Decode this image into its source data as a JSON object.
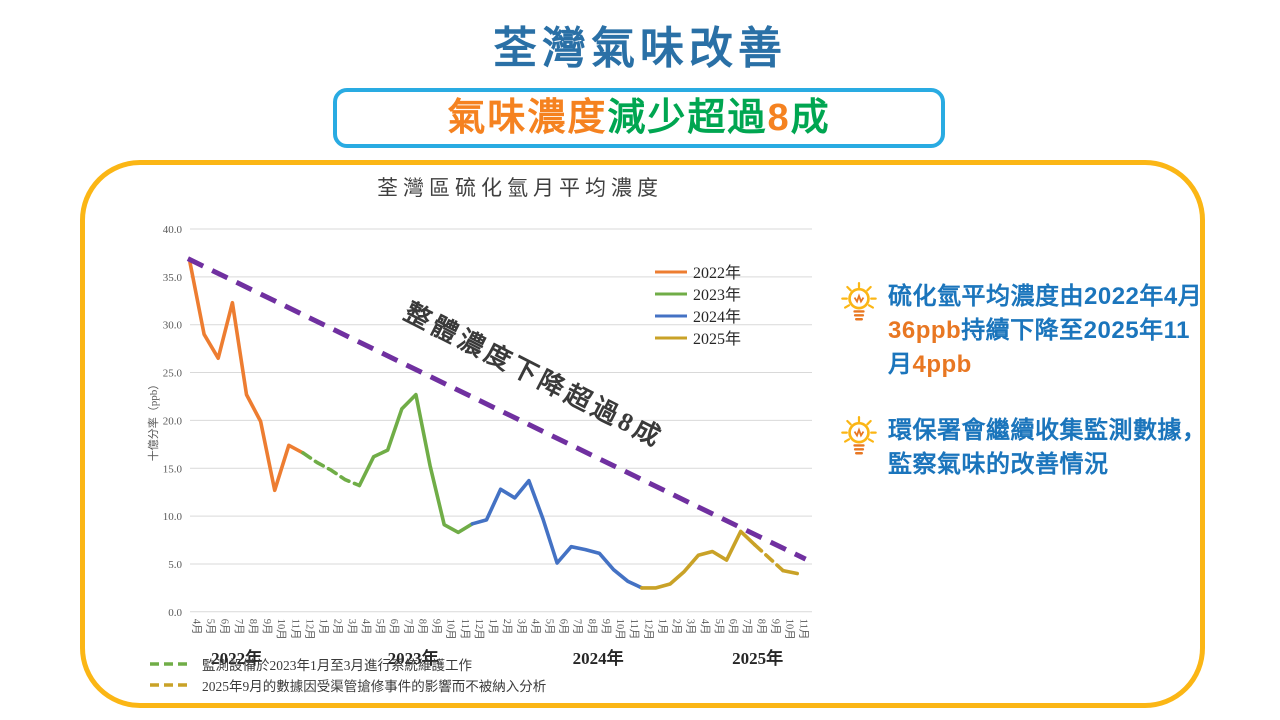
{
  "page": {
    "title": "荃灣氣味改善"
  },
  "subtitle": {
    "segments": [
      {
        "text": "氣味濃度",
        "color": "#F58220"
      },
      {
        "text": "減少超過",
        "color": "#00A651"
      },
      {
        "text": "8",
        "color": "#F58220"
      },
      {
        "text": "成",
        "color": "#00A651"
      }
    ]
  },
  "insights": {
    "bullet1_segments": [
      {
        "text": "硫化氫平均濃度由2022年4月",
        "color": "#1B75BC"
      },
      {
        "text": "36ppb",
        "color": "#E87722"
      },
      {
        "text": "持續下降至2025年11月",
        "color": "#1B75BC"
      },
      {
        "text": "4ppb",
        "color": "#E87722"
      }
    ],
    "bullet2_segments": [
      {
        "text": "環保署會繼續收集監測數據，監察氣味的改善情況",
        "color": "#1B75BC"
      }
    ]
  },
  "footnotes": [
    {
      "dash_color": "#70AD47",
      "text": "監測設備於2023年1月至3月進行系統維護工作"
    },
    {
      "dash_color": "#C9A227",
      "text": "2025年9月的數據因受渠管搶修事件的影響而不被納入分析"
    }
  ],
  "colors": {
    "title_blue": "#2A70A6",
    "text_blue": "#1B75BC",
    "accent_orange": "#F58220",
    "accent_green": "#00A651",
    "badge_border_cyan": "#29ABE2",
    "card_border_yellow": "#FBB615",
    "trend_purple": "#7030A0",
    "gridline": "#D9D9D9",
    "axis_text": "#595959"
  },
  "chart_data": {
    "type": "line",
    "title": "荃灣區硫化氫月平均濃度",
    "ylabel": "十億分率（ppb）",
    "ylim": [
      0,
      40
    ],
    "ytick_step": 5,
    "grid": true,
    "legend_position": "upper-right-inside",
    "x_labels": [
      "4月",
      "5月",
      "6月",
      "7月",
      "8月",
      "9月",
      "10月",
      "11月",
      "12月",
      "1月",
      "2月",
      "3月",
      "4月",
      "5月",
      "6月",
      "7月",
      "8月",
      "9月",
      "10月",
      "11月",
      "12月",
      "1月",
      "2月",
      "3月",
      "4月",
      "5月",
      "6月",
      "7月",
      "8月",
      "9月",
      "10月",
      "11月",
      "12月",
      "1月",
      "2月",
      "3月",
      "4月",
      "5月",
      "6月",
      "7月",
      "8月",
      "9月",
      "10月",
      "11月"
    ],
    "year_labels": [
      {
        "label": "2022年",
        "at": 3.3
      },
      {
        "label": "2023年",
        "at": 15.8
      },
      {
        "label": "2024年",
        "at": 28.9
      },
      {
        "label": "2025年",
        "at": 40.2
      }
    ],
    "series": [
      {
        "name": "2022年",
        "color": "#ED7D31",
        "segments": [
          {
            "style": "solid",
            "points": [
              [
                0,
                36.5
              ],
              [
                1,
                29.0
              ],
              [
                2,
                26.5
              ],
              [
                3,
                32.3
              ],
              [
                4,
                22.7
              ],
              [
                5,
                19.9
              ],
              [
                6,
                12.7
              ],
              [
                7,
                17.4
              ],
              [
                8,
                16.6
              ]
            ]
          }
        ]
      },
      {
        "name": "2023年",
        "color": "#70AD47",
        "segments": [
          {
            "style": "dashed",
            "points": [
              [
                8,
                16.6
              ],
              [
                9,
                15.6
              ],
              [
                10,
                14.8
              ],
              [
                11,
                13.8
              ],
              [
                12,
                13.2
              ]
            ]
          },
          {
            "style": "solid",
            "points": [
              [
                12,
                13.2
              ],
              [
                13,
                16.2
              ],
              [
                14,
                16.9
              ],
              [
                15,
                21.2
              ],
              [
                16,
                22.7
              ],
              [
                17,
                15.3
              ],
              [
                18,
                9.1
              ],
              [
                19,
                8.3
              ],
              [
                20,
                9.2
              ]
            ]
          }
        ]
      },
      {
        "name": "2024年",
        "color": "#4472C4",
        "segments": [
          {
            "style": "solid",
            "points": [
              [
                20,
                9.2
              ],
              [
                21,
                9.6
              ],
              [
                22,
                12.8
              ],
              [
                23,
                11.9
              ],
              [
                24,
                13.7
              ],
              [
                25,
                9.7
              ],
              [
                26,
                5.1
              ],
              [
                27,
                6.8
              ],
              [
                28,
                6.5
              ],
              [
                29,
                6.1
              ],
              [
                30,
                4.4
              ],
              [
                31,
                3.2
              ],
              [
                32,
                2.5
              ]
            ]
          }
        ]
      },
      {
        "name": "2025年",
        "color": "#C9A227",
        "segments": [
          {
            "style": "solid",
            "points": [
              [
                32,
                2.5
              ],
              [
                33,
                2.5
              ],
              [
                34,
                2.9
              ],
              [
                35,
                4.2
              ],
              [
                36,
                5.9
              ],
              [
                37,
                6.3
              ],
              [
                38,
                5.4
              ],
              [
                39,
                8.4
              ],
              [
                40,
                7.0
              ]
            ]
          },
          {
            "style": "dashed",
            "points": [
              [
                40,
                7.0
              ],
              [
                42,
                4.3
              ]
            ]
          },
          {
            "style": "solid",
            "points": [
              [
                42,
                4.3
              ],
              [
                43,
                4.0
              ]
            ]
          }
        ]
      }
    ],
    "trend_line": {
      "color": "#7030A0",
      "style": "dashed",
      "from": [
        -0.15,
        36.9
      ],
      "to": [
        43.6,
        5.5
      ],
      "label": "整體濃度下降超過8成"
    }
  }
}
